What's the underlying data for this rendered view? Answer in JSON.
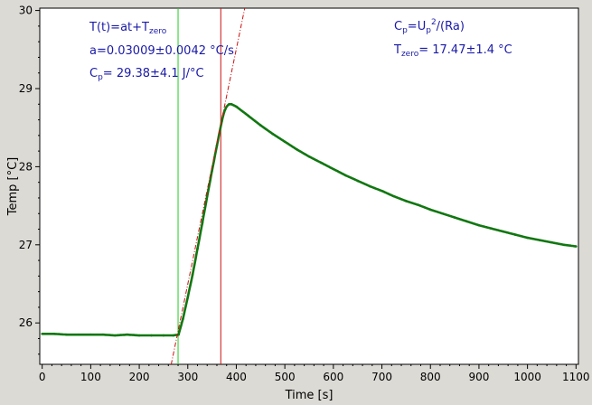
{
  "chart_data": {
    "type": "scatter",
    "title": "",
    "xlabel": "Time [s]",
    "ylabel": "Temp [°C]",
    "xlim": [
      -5,
      1105
    ],
    "ylim": [
      25.47,
      30.03
    ],
    "xticks": [
      0,
      100,
      200,
      300,
      400,
      500,
      600,
      700,
      800,
      900,
      1000,
      1100
    ],
    "yticks": [
      26,
      27,
      28,
      29,
      30
    ],
    "grid": false,
    "legend": "none",
    "colors": {
      "data": "#117711",
      "fit": "#cc1111",
      "marker_start": "#22cc22",
      "marker_end": "#cc1111",
      "annotation": "#1a1aa8"
    },
    "series": [
      {
        "style": "dots",
        "x": [
          0,
          25,
          50,
          75,
          100,
          125,
          150,
          175,
          200,
          225,
          250,
          270,
          281,
          290,
          300,
          310,
          320,
          330,
          340,
          350,
          360,
          370,
          375,
          380,
          385,
          390,
          400,
          425,
          450,
          475,
          500,
          525,
          550,
          575,
          600,
          625,
          650,
          675,
          700,
          725,
          750,
          775,
          800,
          825,
          850,
          875,
          900,
          925,
          950,
          975,
          1000,
          1025,
          1050,
          1075,
          1100
        ],
        "y": [
          25.86,
          25.86,
          25.85,
          25.85,
          25.85,
          25.85,
          25.84,
          25.85,
          25.84,
          25.84,
          25.84,
          25.84,
          25.85,
          26.05,
          26.33,
          26.62,
          26.95,
          27.28,
          27.62,
          27.95,
          28.27,
          28.58,
          28.7,
          28.77,
          28.8,
          28.8,
          28.77,
          28.65,
          28.53,
          28.42,
          28.32,
          28.22,
          28.13,
          28.05,
          27.97,
          27.89,
          27.82,
          27.75,
          27.69,
          27.62,
          27.56,
          27.51,
          27.45,
          27.4,
          27.35,
          27.3,
          27.25,
          27.21,
          27.17,
          27.13,
          27.09,
          27.06,
          27.03,
          27.0,
          26.98
        ]
      }
    ],
    "fit_line": {
      "slope": 0.03009,
      "intercept": 17.47,
      "x_range": [
        262,
        425
      ]
    },
    "vlines": [
      {
        "x": 280,
        "color": "#22cc22"
      },
      {
        "x": 368,
        "color": "#cc1111"
      }
    ],
    "annotations": {
      "left": {
        "line1": {
          "main": "T(t)=at+T",
          "sub": "zero"
        },
        "line2": "a=0.03009±0.0042 °C/s",
        "line3": {
          "main": "C",
          "sub": "p",
          "rest": "= 29.38±4.1 J/°C"
        }
      },
      "right": {
        "line1": {
          "main": "C",
          "sub": "p",
          "mid": "=U",
          "sub2": "p",
          "sup": "2",
          "rest": "/(Ra)"
        },
        "line2": {
          "main": "T",
          "sub": "zero",
          "rest": "= 17.47±1.4 °C"
        }
      }
    }
  }
}
